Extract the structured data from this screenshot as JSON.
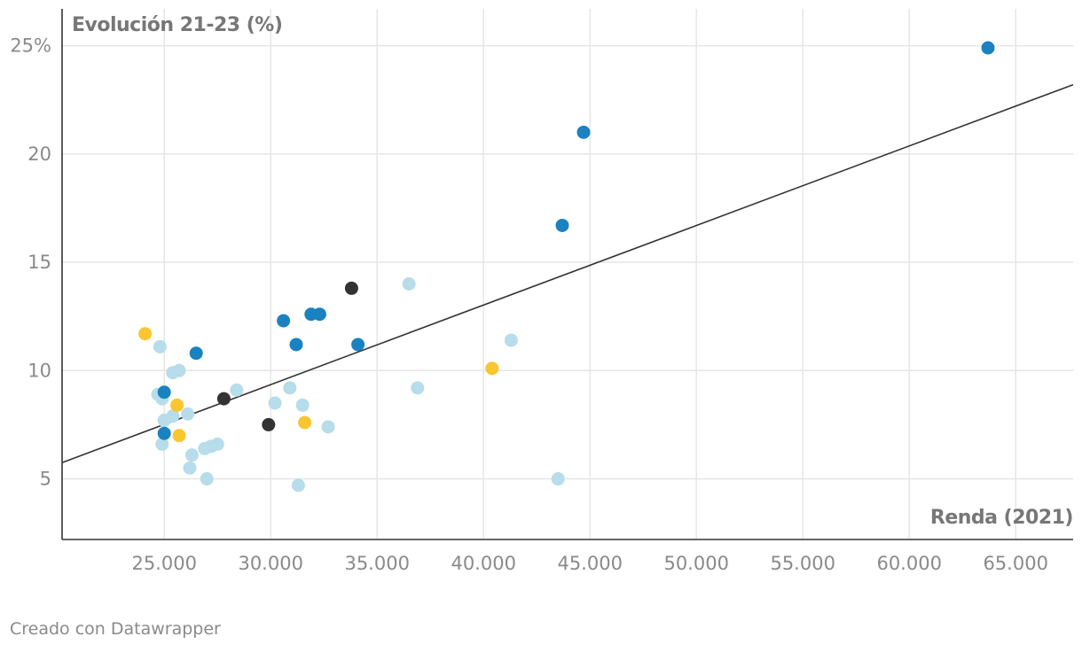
{
  "footer": {
    "credit": "Creado con Datawrapper"
  },
  "colors": {
    "light_blue": "#b7dcea",
    "dark_blue": "#1a82c0",
    "yellow": "#f9c630",
    "black": "#333333",
    "trend": "#333333",
    "grid": "#e6e6e6",
    "axis": "#333333"
  },
  "chart_data": {
    "type": "scatter",
    "title": "",
    "ylabel": "Evolución 21-23 (%)",
    "xlabel": "Renda (2021)",
    "xlim": [
      20200,
      67700
    ],
    "ylim": [
      2.2,
      26.7
    ],
    "x_ticks": [
      {
        "value": 25000,
        "label": "25.000"
      },
      {
        "value": 30000,
        "label": "30.000"
      },
      {
        "value": 35000,
        "label": "35.000"
      },
      {
        "value": 40000,
        "label": "40.000"
      },
      {
        "value": 45000,
        "label": "45.000"
      },
      {
        "value": 50000,
        "label": "50.000"
      },
      {
        "value": 55000,
        "label": "55.000"
      },
      {
        "value": 60000,
        "label": "60.000"
      },
      {
        "value": 65000,
        "label": "65.000"
      }
    ],
    "y_ticks": [
      {
        "value": 5,
        "label": "5"
      },
      {
        "value": 10,
        "label": "10"
      },
      {
        "value": 15,
        "label": "15"
      },
      {
        "value": 20,
        "label": "20"
      },
      {
        "value": 25,
        "label": "25%"
      }
    ],
    "trendline": {
      "x1": 20200,
      "y1": 5.75,
      "x2": 67700,
      "y2": 23.2
    },
    "series": [
      {
        "name": "light blue",
        "color": "#b7dcea",
        "points": [
          {
            "x": 24700,
            "y": 8.9
          },
          {
            "x": 24800,
            "y": 11.1
          },
          {
            "x": 24900,
            "y": 8.7
          },
          {
            "x": 24900,
            "y": 6.6
          },
          {
            "x": 25000,
            "y": 7.7
          },
          {
            "x": 25400,
            "y": 9.9
          },
          {
            "x": 25400,
            "y": 7.9
          },
          {
            "x": 25700,
            "y": 10.0
          },
          {
            "x": 26100,
            "y": 8.0
          },
          {
            "x": 26200,
            "y": 5.5
          },
          {
            "x": 26300,
            "y": 6.1
          },
          {
            "x": 26900,
            "y": 6.4
          },
          {
            "x": 27000,
            "y": 5.0
          },
          {
            "x": 27200,
            "y": 6.5
          },
          {
            "x": 27500,
            "y": 6.6
          },
          {
            "x": 28400,
            "y": 9.1
          },
          {
            "x": 30200,
            "y": 8.5
          },
          {
            "x": 30900,
            "y": 9.2
          },
          {
            "x": 31300,
            "y": 4.7
          },
          {
            "x": 31500,
            "y": 8.4
          },
          {
            "x": 32700,
            "y": 7.4
          },
          {
            "x": 36500,
            "y": 14.0
          },
          {
            "x": 36900,
            "y": 9.2
          },
          {
            "x": 41300,
            "y": 11.4
          },
          {
            "x": 43500,
            "y": 5.0
          }
        ]
      },
      {
        "name": "dark blue",
        "color": "#1a82c0",
        "points": [
          {
            "x": 25000,
            "y": 9.0
          },
          {
            "x": 25000,
            "y": 7.1
          },
          {
            "x": 26500,
            "y": 10.8
          },
          {
            "x": 30600,
            "y": 12.3
          },
          {
            "x": 31200,
            "y": 11.2
          },
          {
            "x": 31900,
            "y": 12.6
          },
          {
            "x": 32300,
            "y": 12.6
          },
          {
            "x": 34100,
            "y": 11.2
          },
          {
            "x": 43700,
            "y": 16.7
          },
          {
            "x": 44700,
            "y": 21.0
          },
          {
            "x": 63700,
            "y": 24.9
          }
        ]
      },
      {
        "name": "yellow",
        "color": "#f9c630",
        "points": [
          {
            "x": 24100,
            "y": 11.7
          },
          {
            "x": 25600,
            "y": 8.4
          },
          {
            "x": 25700,
            "y": 7.0
          },
          {
            "x": 31600,
            "y": 7.6
          },
          {
            "x": 40400,
            "y": 10.1
          }
        ]
      },
      {
        "name": "black",
        "color": "#333333",
        "points": [
          {
            "x": 27800,
            "y": 8.7
          },
          {
            "x": 29900,
            "y": 7.5
          },
          {
            "x": 33800,
            "y": 13.8
          }
        ]
      }
    ]
  }
}
